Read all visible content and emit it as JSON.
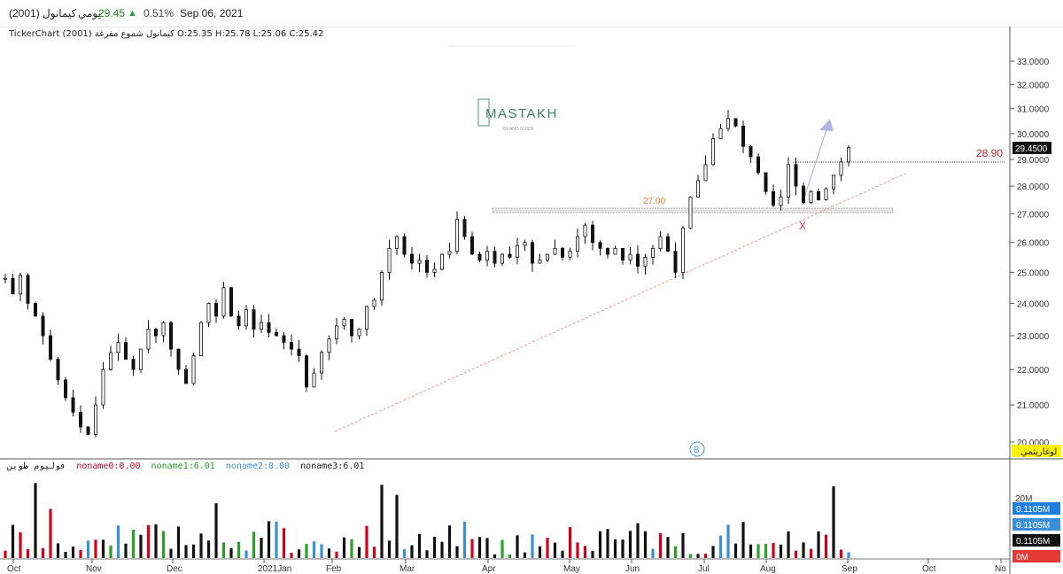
{
  "header": {
    "symbol": "كيمانول (2001)",
    "period": "يومي",
    "price": "29.45",
    "change_pct": "0.51%",
    "date": "Sep 06, 2021",
    "info_line": "TickerChart كيمانول شموع مفرغة (2001) O:25.35 H:25.78 L:25.06 C:25.42"
  },
  "watermark": {
    "brand": "MASTAKH",
    "sub": "BRAND GUIDE"
  },
  "volume_legend": [
    {
      "label": "فوليوم طوين",
      "color": "#222222"
    },
    {
      "label": "noname0:0.00",
      "color": "#d0021b"
    },
    {
      "label": "noname1:6.01",
      "color": "#2aa02a"
    },
    {
      "label": "noname2:0.00",
      "color": "#3a8fd8"
    },
    {
      "label": "noname3:6.01",
      "color": "#222222"
    }
  ],
  "log_button": "لوغاريتمي",
  "colors": {
    "accent_green": "#2ea043",
    "trend": "#e57373",
    "level": "#c62828",
    "annotation": "#ff7a3d"
  },
  "chart_data": {
    "type": "candlestick",
    "y_scale": "log",
    "ylim": [
      19.8,
      33.5
    ],
    "y_ticks": [
      "33.0000",
      "32.0000",
      "31.0000",
      "30.0000",
      "29.0000",
      "28.0000",
      "27.0000",
      "26.0000",
      "25.0000",
      "24.0000",
      "23.0000",
      "22.0000",
      "21.0000",
      "20.0000"
    ],
    "x_ticks": [
      "Oct",
      "Nov",
      "Dec",
      "2021Jan",
      "Feb",
      "Mar",
      "Apr",
      "May",
      "Jun",
      "Jul",
      "Aug",
      "Sep",
      "Oct",
      "No"
    ],
    "last_price_label": "29.4500",
    "annotations": {
      "resistance_label": "27.00",
      "level_label": "28.90",
      "x_mark": "X",
      "b_mark": "B"
    },
    "price_series": [
      {
        "month": "2020-10",
        "close": [
          24.8,
          24.3,
          24.9,
          24.0,
          23.6,
          23.0,
          22.3,
          21.7,
          21.2,
          20.8
        ]
      },
      {
        "month": "2020-11",
        "close": [
          20.4,
          20.2,
          21.0,
          22.0,
          22.5,
          22.8,
          22.3,
          22.0,
          22.6,
          23.2
        ]
      },
      {
        "month": "2020-12",
        "close": [
          23.0,
          23.4,
          22.6,
          22.0,
          21.6,
          22.4,
          23.4,
          24.0,
          23.6,
          24.5
        ]
      },
      {
        "month": "2021-01",
        "close": [
          23.6,
          23.3,
          23.8,
          23.2,
          23.4,
          23.1,
          23.0,
          22.8,
          22.6,
          22.4
        ]
      },
      {
        "month": "2021-02",
        "close": [
          21.5,
          21.9,
          22.5,
          22.9,
          23.3,
          23.5,
          23.0,
          23.2,
          23.9,
          24.1
        ]
      },
      {
        "month": "2021-03",
        "close": [
          25.0,
          25.8,
          26.2,
          25.6,
          25.3,
          25.4,
          25.0,
          25.1,
          25.6,
          25.7
        ]
      },
      {
        "month": "2021-04",
        "close": [
          26.8,
          26.2,
          25.6,
          25.4,
          25.7,
          25.3,
          25.6,
          25.5,
          25.9,
          26.0
        ]
      },
      {
        "month": "2021-05",
        "close": [
          25.3,
          25.4,
          25.6,
          25.8,
          25.5,
          25.7,
          26.2,
          26.6,
          26.0,
          25.8
        ]
      },
      {
        "month": "2021-06",
        "close": [
          25.6,
          25.8,
          25.4,
          25.6,
          25.2,
          25.5,
          25.8,
          26.2,
          25.7,
          25.0
        ]
      },
      {
        "month": "2021-07",
        "close": [
          26.5,
          27.6,
          28.2,
          28.8,
          29.8,
          30.2,
          30.6,
          30.3,
          29.5,
          29.1
        ]
      },
      {
        "month": "2021-08",
        "close": [
          28.5,
          27.8,
          27.3,
          27.6,
          28.8,
          28.0,
          27.4,
          27.8,
          27.5,
          27.9
        ]
      },
      {
        "month": "2021-09",
        "close": [
          28.4,
          28.9,
          29.45
        ]
      }
    ],
    "volume_axis": {
      "top_label": "20M",
      "values": [
        "0.1105M",
        "0.1105M",
        "0.1105M",
        "0M"
      ]
    }
  }
}
